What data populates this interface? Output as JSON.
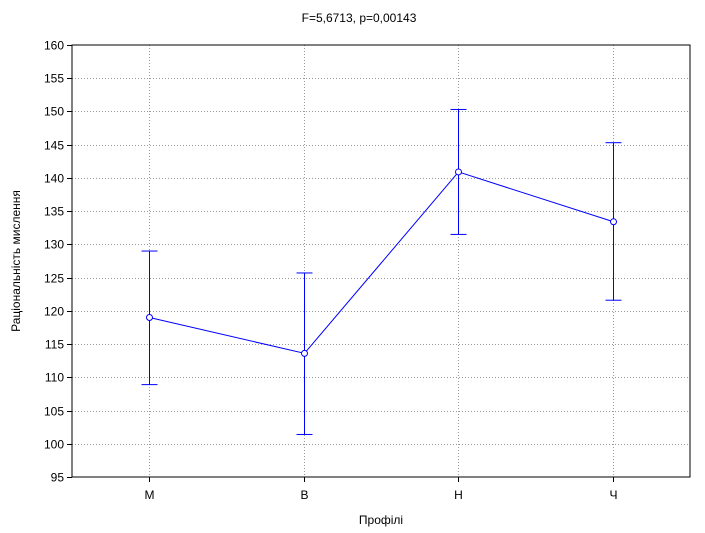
{
  "chart_data": {
    "type": "line",
    "title": "F=5,6713, p=0,00143",
    "xlabel": "Профілі",
    "ylabel": "Раціональність мислення",
    "categories": [
      "М",
      "В",
      "Н",
      "Ч"
    ],
    "series": [
      {
        "values": [
          119.0,
          113.6,
          140.9,
          133.4
        ],
        "lower": [
          108.9,
          101.4,
          131.5,
          121.6
        ],
        "upper": [
          129.0,
          125.7,
          150.3,
          145.3
        ]
      }
    ],
    "ylim": [
      95,
      160
    ],
    "yticks": [
      "95",
      "100",
      "105",
      "110",
      "115",
      "120",
      "125",
      "130",
      "135",
      "140",
      "145",
      "150",
      "155",
      "160"
    ],
    "grid": true,
    "colors": {
      "series": "#0000ff",
      "grid": "#999999",
      "axis": "#000000"
    }
  }
}
